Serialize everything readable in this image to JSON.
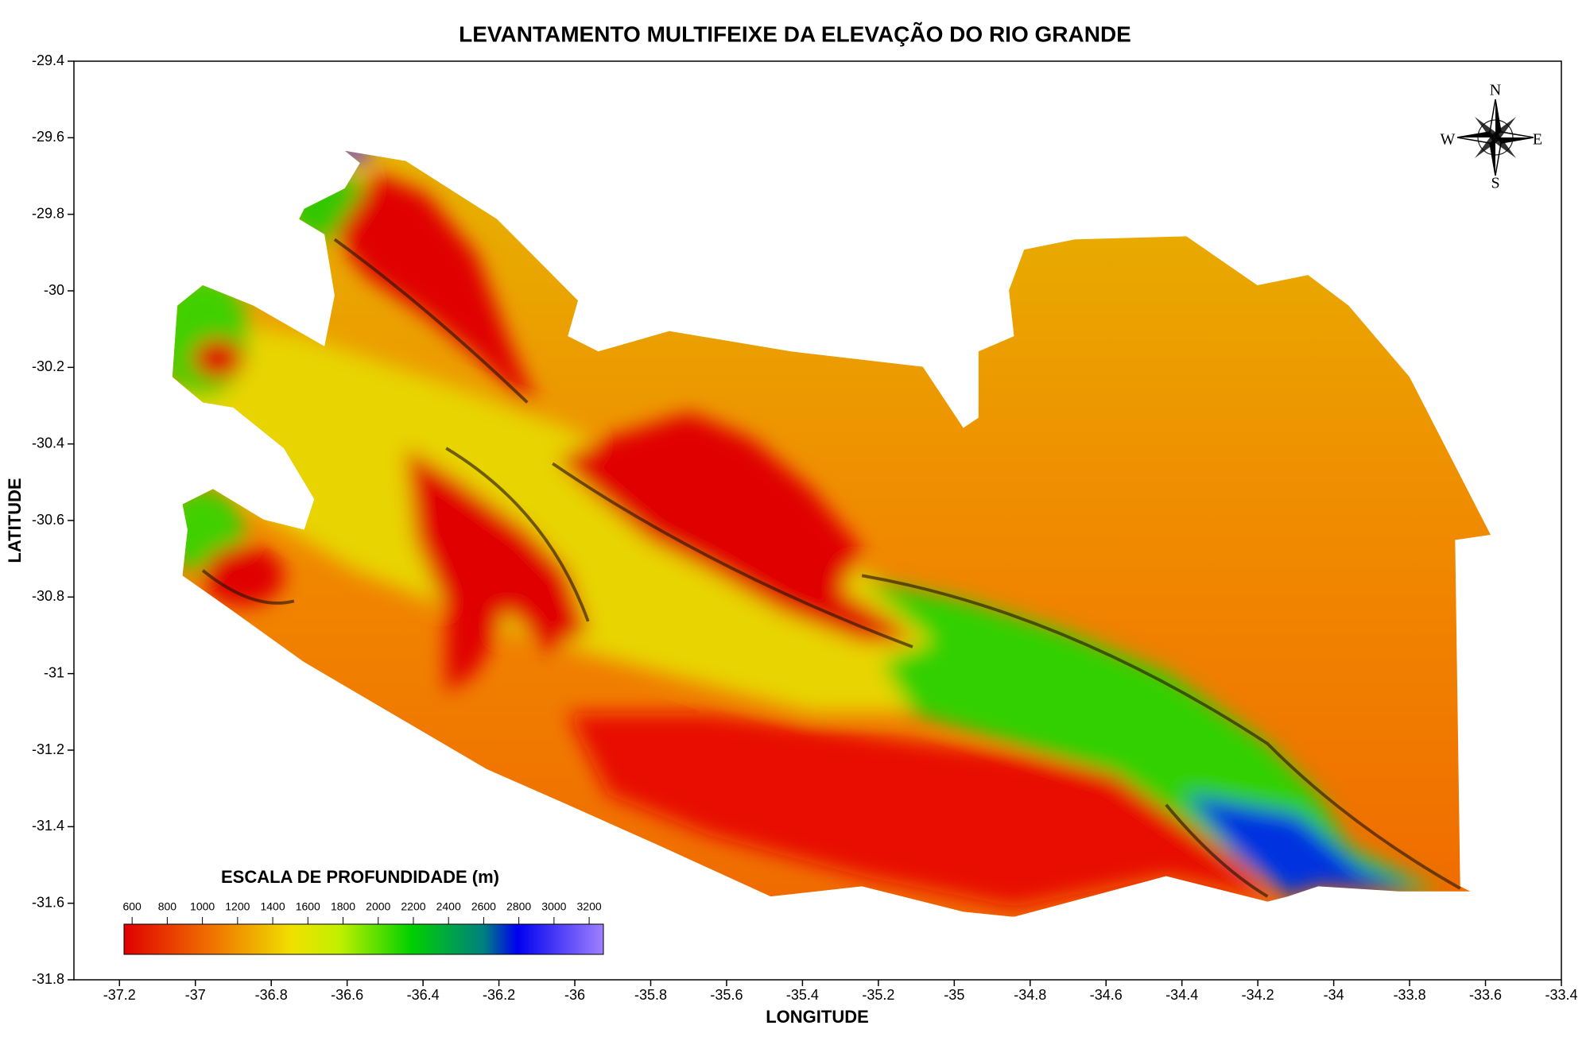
{
  "title": "LEVANTAMENTO MULTIFEIXE DA ELEVAÇÃO DO RIO GRANDE",
  "x_axis": {
    "label": "LONGITUDE",
    "lim": [
      -37.32,
      -33.4
    ],
    "ticks": [
      -37.2,
      -37,
      -36.8,
      -36.6,
      -36.4,
      -36.2,
      -36,
      -35.8,
      -35.6,
      -35.4,
      -35.2,
      -35,
      -34.8,
      -34.6,
      -34.4,
      -34.2,
      -34,
      -33.8,
      -33.6,
      -33.4
    ]
  },
  "y_axis": {
    "label": "LATITUDE",
    "lim": [
      -31.8,
      -29.4
    ],
    "ticks": [
      -29.4,
      -29.6,
      -29.8,
      -30,
      -30.2,
      -30.4,
      -30.6,
      -30.8,
      -31,
      -31.2,
      -31.4,
      -31.6,
      -31.8
    ]
  },
  "colorbar": {
    "title": "ESCALA DE PROFUNDIDADE (m)",
    "range": [
      554,
      3281
    ],
    "ticks": [
      600,
      800,
      1000,
      1200,
      1400,
      1600,
      1800,
      2000,
      2200,
      2400,
      2600,
      2800,
      3000,
      3200
    ]
  },
  "compass": {
    "north": "N",
    "south": "S",
    "east": "E",
    "west": "W"
  }
}
